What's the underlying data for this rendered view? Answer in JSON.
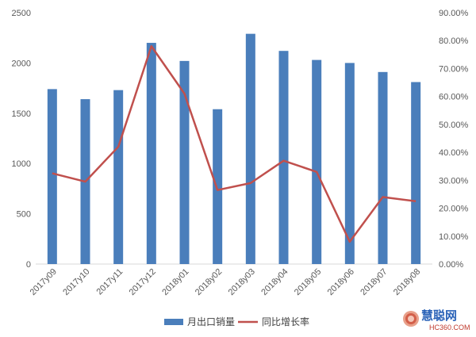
{
  "chart_data": {
    "type": "bar",
    "categories": [
      "2017y09",
      "2017y10",
      "2017y11",
      "2017y12",
      "2018y01",
      "2018y02",
      "2018y03",
      "2018y04",
      "2018y05",
      "2018y06",
      "2018y07",
      "2018y08"
    ],
    "series": [
      {
        "name": "月出口销量",
        "type": "bar",
        "axis": "left",
        "color": "#4a7ebb",
        "values": [
          1740,
          1640,
          1730,
          2200,
          2020,
          1540,
          2290,
          2120,
          2030,
          2000,
          1910,
          1810
        ]
      },
      {
        "name": "同比增长率",
        "type": "line",
        "axis": "right",
        "color": "#c0504d",
        "values": [
          0.325,
          0.295,
          0.42,
          0.78,
          0.61,
          0.265,
          0.29,
          0.37,
          0.33,
          0.08,
          0.24,
          0.225
        ]
      }
    ],
    "y_left": {
      "min": 0,
      "max": 2500,
      "ticks": [
        "0",
        "500",
        "1000",
        "1500",
        "2000",
        "2500"
      ]
    },
    "y_right": {
      "min": 0,
      "max": 0.9,
      "ticks": [
        "0.00%",
        "10.00%",
        "20.00%",
        "30.00%",
        "40.00%",
        "50.00%",
        "60.00%",
        "70.00%",
        "80.00%",
        "90.00%"
      ]
    },
    "title": "",
    "xlabel": "",
    "ylabel": "",
    "grid": false,
    "legend_position": "bottom"
  },
  "watermark": {
    "text": "慧聪网",
    "subtext": "HC360.COM",
    "icon": "hc360-logo-icon",
    "color_main": "#2b63b8",
    "color_sub": "#c0392b"
  }
}
